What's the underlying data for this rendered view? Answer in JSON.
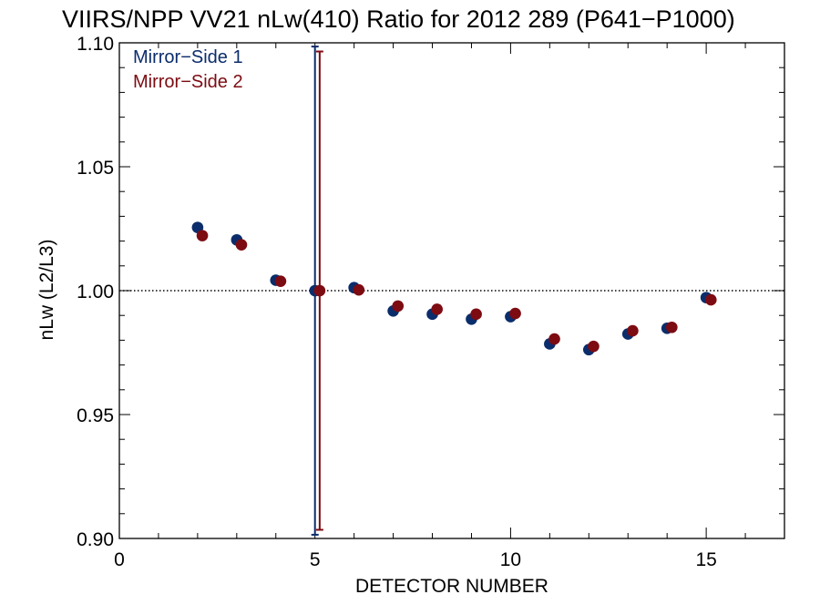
{
  "chart_data": {
    "type": "scatter",
    "title": "VIIRS/NPP VV21 nLw(410) Ratio for 2012 289 (P641−P1000)",
    "xlabel": "DETECTOR NUMBER",
    "ylabel": "nLw (L2/L3)",
    "xlim": [
      0,
      17
    ],
    "ylim": [
      0.9,
      1.1
    ],
    "xticks": [
      0,
      5,
      10,
      15
    ],
    "xtick_labels": [
      "0",
      "5",
      "10",
      "15"
    ],
    "yticks": [
      0.9,
      0.95,
      1.0,
      1.05,
      1.1
    ],
    "ytick_labels": [
      "0.90",
      "0.95",
      "1.00",
      "1.05",
      "1.10"
    ],
    "reference_line": {
      "y": 1.0,
      "style": "dotted"
    },
    "legend_position": "top-left",
    "series": [
      {
        "name": "Mirror−Side 1",
        "color": "#0b2d6b",
        "x_offset": 0,
        "x": [
          2,
          3,
          4,
          5,
          6,
          7,
          8,
          9,
          10,
          11,
          12,
          13,
          14,
          15
        ],
        "y": [
          1.0255,
          1.0205,
          1.0042,
          1.0,
          1.0012,
          0.9918,
          0.9905,
          0.9885,
          0.9895,
          0.9785,
          0.9762,
          0.9825,
          0.9848,
          0.9972
        ],
        "error_bar": {
          "x": 5,
          "low": 0.9015,
          "high": 1.0985
        }
      },
      {
        "name": "Mirror−Side 2",
        "color": "#7d0b12",
        "x_offset": 0.12,
        "x": [
          2,
          3,
          4,
          5,
          6,
          7,
          8,
          9,
          10,
          11,
          12,
          13,
          14,
          15
        ],
        "y": [
          1.0222,
          1.0185,
          1.0038,
          1.0,
          1.0003,
          0.9938,
          0.9925,
          0.9905,
          0.9908,
          0.9805,
          0.9775,
          0.9838,
          0.9852,
          0.9963
        ],
        "error_bar": {
          "x": 5,
          "low": 0.9035,
          "high": 1.0965
        }
      }
    ]
  }
}
